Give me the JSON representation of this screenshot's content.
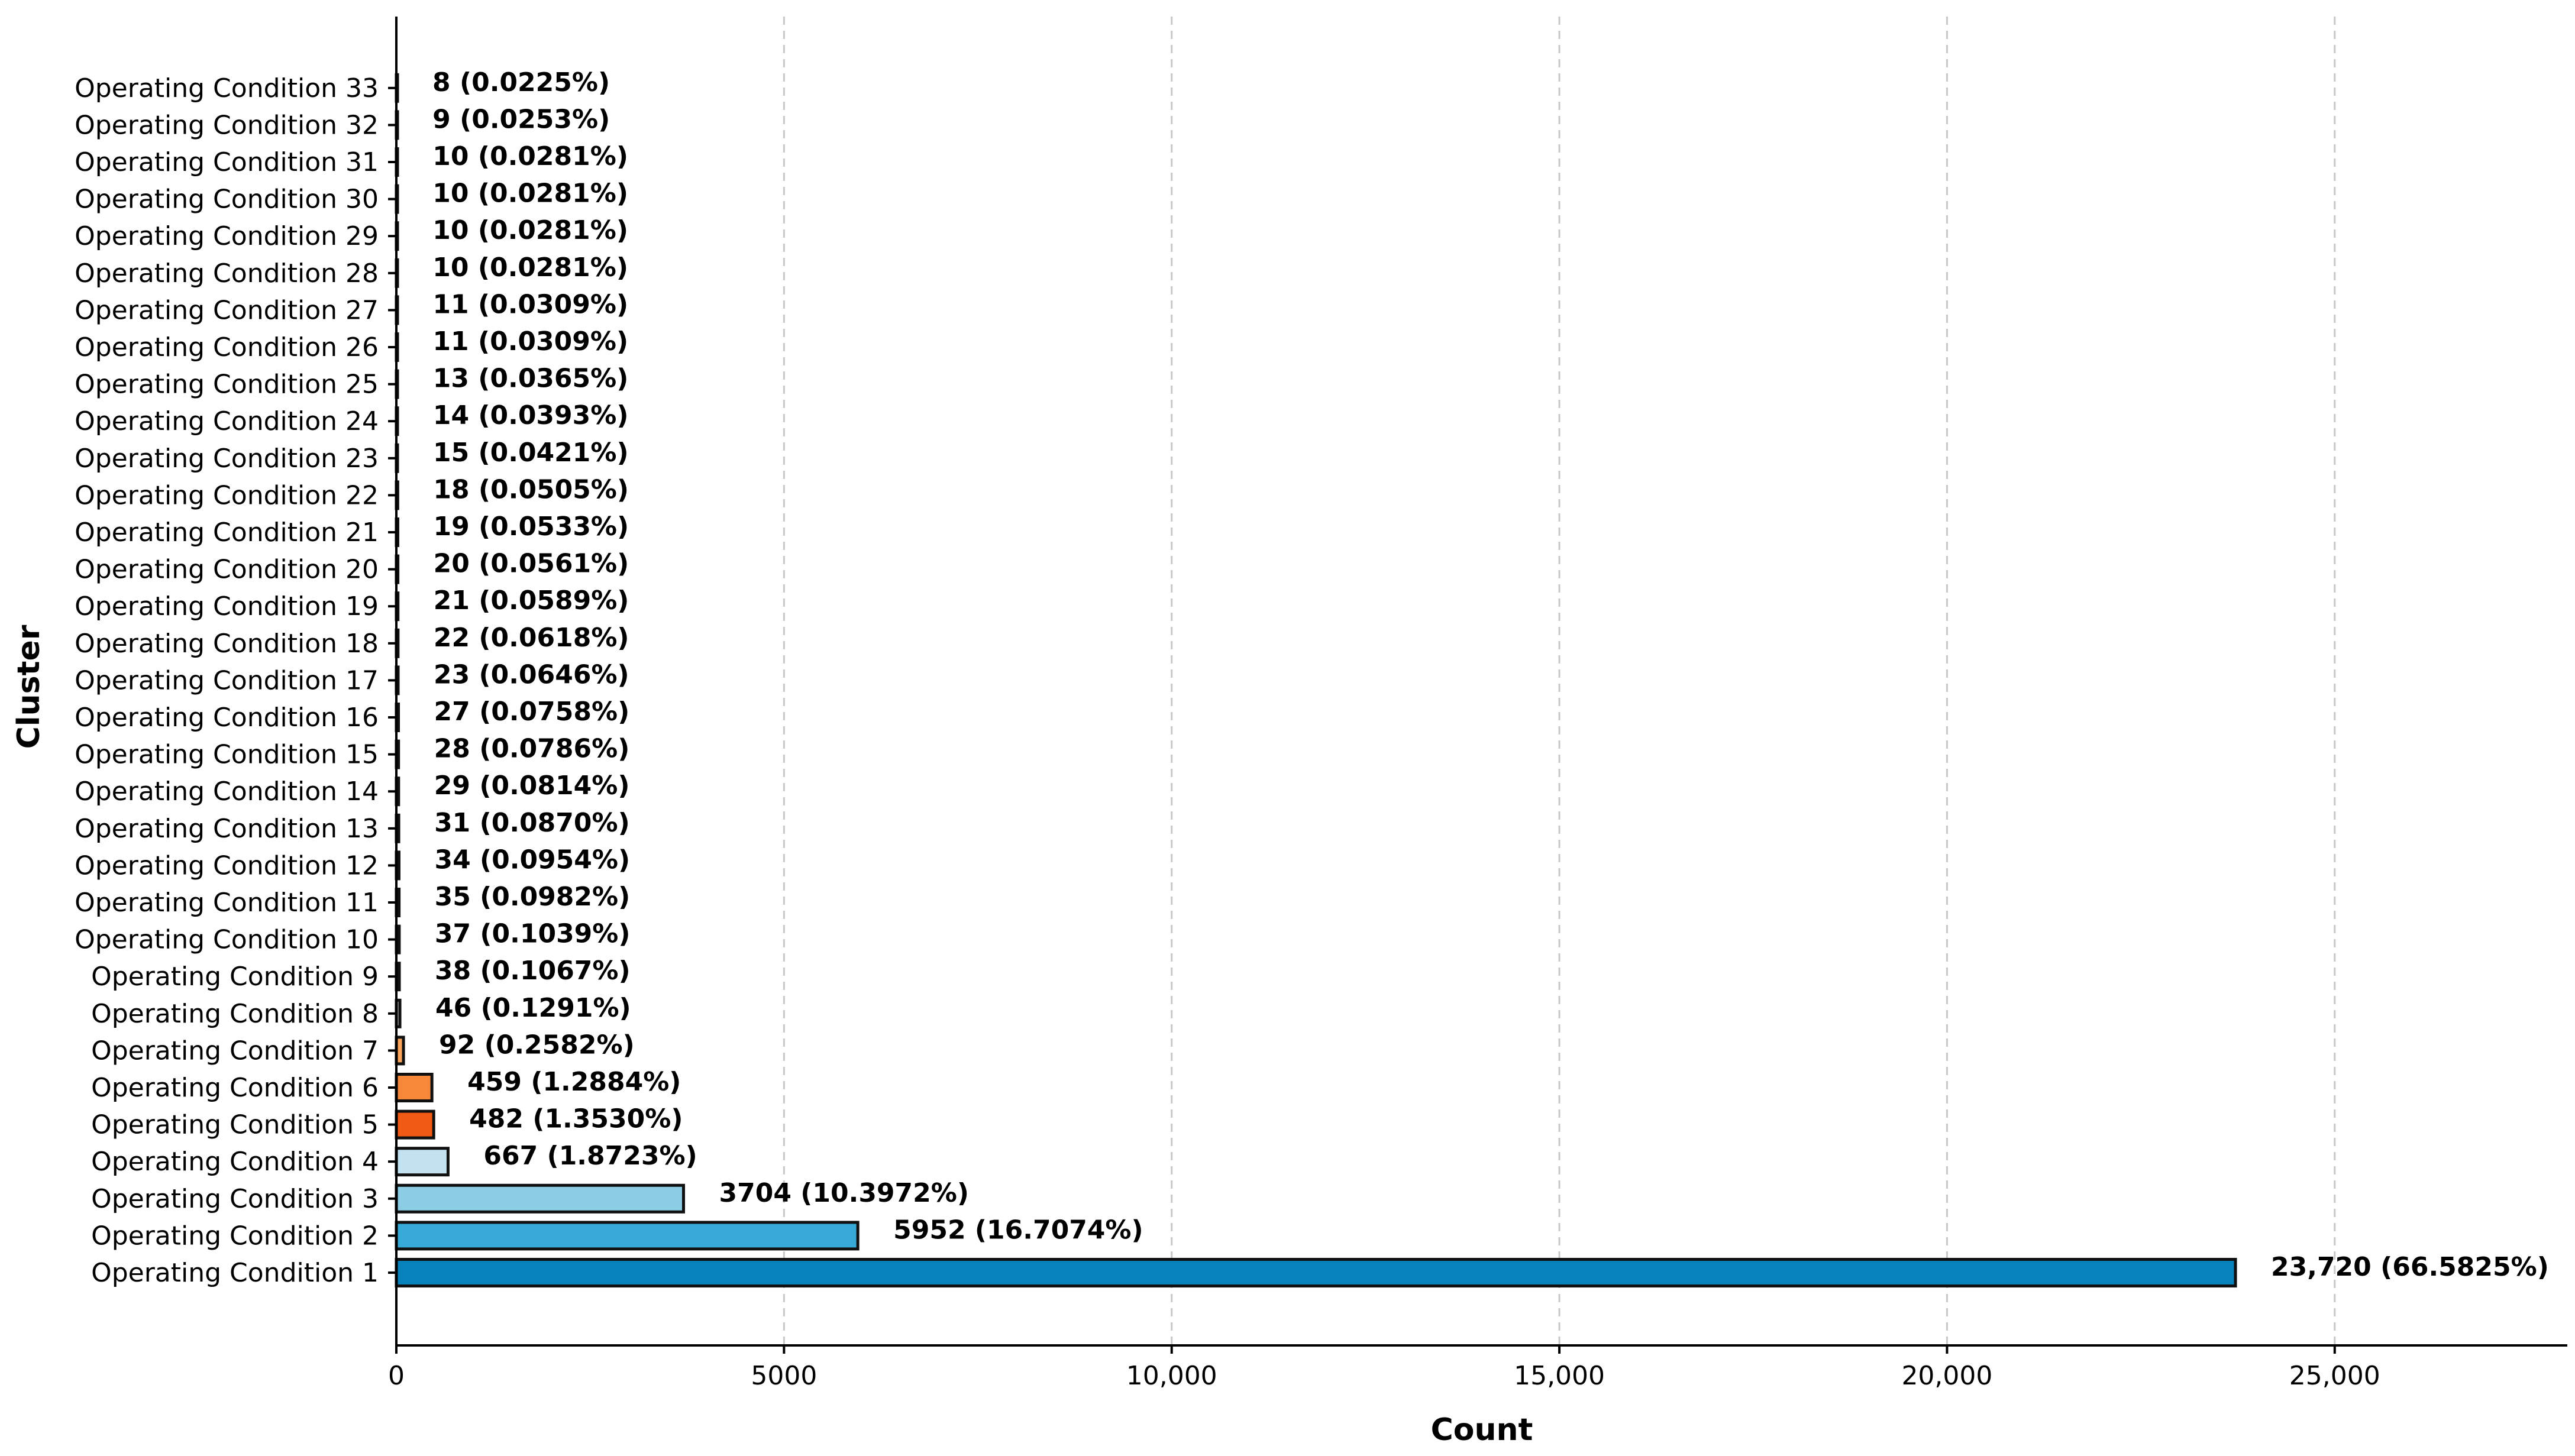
{
  "chart_data": {
    "type": "bar",
    "orientation": "horizontal",
    "title": "",
    "xlabel": "Count",
    "ylabel": "Cluster",
    "xlim": [
      0,
      28000
    ],
    "xticks": [
      0,
      5000,
      10000,
      15000,
      20000,
      25000
    ],
    "xtick_labels": [
      "0",
      "5000",
      "10,000",
      "15,000",
      "20,000",
      "25,000"
    ],
    "grid": "vertical dashed",
    "categories": [
      "Operating Condition 1",
      "Operating Condition 2",
      "Operating Condition 3",
      "Operating Condition 4",
      "Operating Condition 5",
      "Operating Condition 6",
      "Operating Condition 7",
      "Operating Condition 8",
      "Operating Condition 9",
      "Operating Condition 10",
      "Operating Condition 11",
      "Operating Condition 12",
      "Operating Condition 13",
      "Operating Condition 14",
      "Operating Condition 15",
      "Operating Condition 16",
      "Operating Condition 17",
      "Operating Condition 18",
      "Operating Condition 19",
      "Operating Condition 20",
      "Operating Condition 21",
      "Operating Condition 22",
      "Operating Condition 23",
      "Operating Condition 24",
      "Operating Condition 25",
      "Operating Condition 26",
      "Operating Condition 27",
      "Operating Condition 28",
      "Operating Condition 29",
      "Operating Condition 30",
      "Operating Condition 31",
      "Operating Condition 32",
      "Operating Condition 33"
    ],
    "values": [
      23720,
      5952,
      3704,
      667,
      482,
      459,
      92,
      46,
      38,
      37,
      35,
      34,
      31,
      29,
      28,
      27,
      23,
      22,
      21,
      20,
      19,
      18,
      15,
      14,
      13,
      11,
      11,
      10,
      10,
      10,
      10,
      9,
      8
    ],
    "labels": [
      "23,720 (66.5825%)",
      "5952 (16.7074%)",
      "3704 (10.3972%)",
      "667 (1.8723%)",
      "482 (1.3530%)",
      "459 (1.2884%)",
      "92 (0.2582%)",
      "46 (0.1291%)",
      "38 (0.1067%)",
      "37 (0.1039%)",
      "35 (0.0982%)",
      "34 (0.0954%)",
      "31 (0.0870%)",
      "29 (0.0814%)",
      "28 (0.0786%)",
      "27 (0.0758%)",
      "23 (0.0646%)",
      "22 (0.0618%)",
      "21 (0.0589%)",
      "20 (0.0561%)",
      "19 (0.0533%)",
      "18 (0.0505%)",
      "15 (0.0421%)",
      "14 (0.0393%)",
      "13 (0.0365%)",
      "11 (0.0309%)",
      "11 (0.0309%)",
      "10 (0.0281%)",
      "10 (0.0281%)",
      "10 (0.0281%)",
      "10 (0.0281%)",
      "9 (0.0253%)",
      "8 (0.0225%)"
    ],
    "colors": [
      "#0882bc",
      "#36a9d6",
      "#8ccde6",
      "#c2e2f1",
      "#f05a14",
      "#f7883a",
      "#fba45c",
      "#c8c8c8",
      "#c8c8c8",
      "#c8c8c8",
      "#c8c8c8",
      "#c8c8c8",
      "#c8c8c8",
      "#c8c8c8",
      "#c8c8c8",
      "#c8c8c8",
      "#c8c8c8",
      "#c8c8c8",
      "#c8c8c8",
      "#c8c8c8",
      "#c8c8c8",
      "#c8c8c8",
      "#c8c8c8",
      "#c8c8c8",
      "#c8c8c8",
      "#c8c8c8",
      "#c8c8c8",
      "#c8c8c8",
      "#c8c8c8",
      "#c8c8c8",
      "#c8c8c8",
      "#c8c8c8",
      "#c8c8c8"
    ]
  }
}
